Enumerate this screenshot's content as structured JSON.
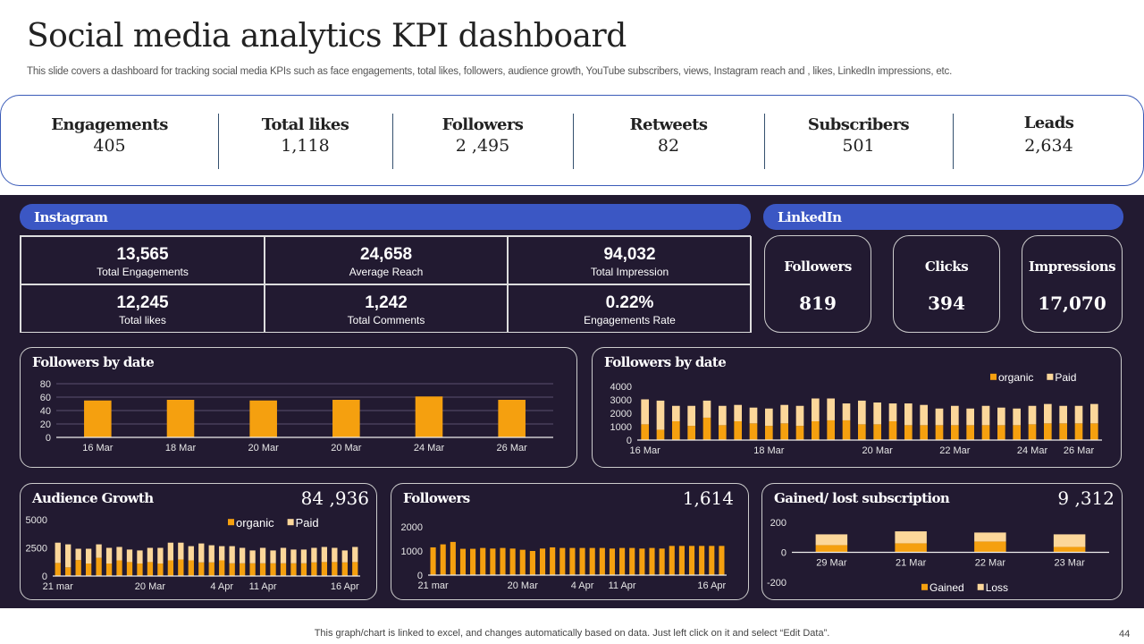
{
  "title": "Social media analytics KPI dashboard",
  "subtitle": "This slide covers a dashboard for tracking social media KPIs such as face engagements, total likes, followers, audience growth, YouTube subscribers, views, Instagram reach and , likes, LinkedIn impressions, etc.",
  "kpis": [
    {
      "label": "Engagements",
      "value": "405"
    },
    {
      "label": "Total likes",
      "value": "1,118"
    },
    {
      "label": "Followers",
      "value": "2 ,495"
    },
    {
      "label": "Retweets",
      "value": "82"
    },
    {
      "label": "Subscribers",
      "value": "501"
    },
    {
      "label": "Leads",
      "value": "2,634"
    }
  ],
  "instagram": {
    "header": "Instagram",
    "metrics": [
      {
        "value": "13,565",
        "label": "Total Engagements"
      },
      {
        "value": "24,658",
        "label": "Average Reach"
      },
      {
        "value": "94,032",
        "label": "Total Impression"
      },
      {
        "value": "12,245",
        "label": "Total likes"
      },
      {
        "value": "1,242",
        "label": "Total Comments"
      },
      {
        "value": "0.22%",
        "label": "Engagements Rate"
      }
    ]
  },
  "linkedin": {
    "header": "LinkedIn",
    "metrics": [
      {
        "label": "Followers",
        "value": "819"
      },
      {
        "label": "Clicks",
        "value": "394"
      },
      {
        "label": "Impressions",
        "value": "17,070"
      }
    ]
  },
  "colors": {
    "organic": "#f5a00f",
    "paid": "#fcd79a",
    "dark_bg": "#221a31",
    "header_blue": "#3b57c4",
    "kpi_border": "#3a5bb8"
  },
  "chart_data": [
    {
      "type": "bar",
      "title": "Followers by date",
      "grid": true,
      "ylim": [
        0,
        80
      ],
      "yticks": [
        0,
        20,
        40,
        60,
        80
      ],
      "categories": [
        "16 Mar",
        "18 Mar",
        "20 Mar",
        "20 Mar",
        "24 Mar",
        "26 Mar"
      ],
      "series": [
        {
          "values": [
            55,
            56,
            55,
            56,
            61,
            56
          ]
        }
      ]
    },
    {
      "type": "bar",
      "stacked": true,
      "title": "Followers by date",
      "grid": false,
      "ylim": [
        0,
        4000
      ],
      "yticks": [
        0,
        1000,
        2000,
        3000,
        4000
      ],
      "legend": "top-right",
      "categories": [
        "16 Mar",
        "",
        "",
        "",
        "",
        "",
        "",
        "",
        "18 Mar",
        "",
        "",
        "",
        "",
        "",
        "",
        "20 Mar",
        "",
        "",
        "",
        "",
        "22 Mar",
        "",
        "",
        "",
        "",
        "24 Mar",
        "",
        "",
        "26 Mar",
        ""
      ],
      "series": [
        {
          "name": "organic",
          "values": [
            1175,
            770,
            1400,
            1060,
            1670,
            1110,
            1400,
            1245,
            1060,
            1245,
            1060,
            1400,
            1470,
            1470,
            1175,
            1175,
            1400,
            1110,
            1110,
            1110,
            1110,
            1110,
            1110,
            1110,
            1110,
            1175,
            1245,
            1245,
            1245,
            1245
          ]
        },
        {
          "name": "Paid",
          "values": [
            1860,
            2170,
            1150,
            1490,
            1270,
            1440,
            1220,
            1175,
            1290,
            1375,
            1490,
            1700,
            1630,
            1260,
            1765,
            1625,
            1330,
            1620,
            1510,
            1240,
            1440,
            1240,
            1440,
            1310,
            1240,
            1375,
            1445,
            1305,
            1305,
            1445
          ]
        }
      ]
    },
    {
      "type": "bar",
      "stacked": true,
      "title": "Audience Growth",
      "headline": "84 ,936",
      "grid": false,
      "ylim": [
        0,
        5000
      ],
      "yticks": [
        0,
        2500,
        5000
      ],
      "legend": "top-right",
      "categories": [
        "21 mar",
        "",
        "",
        "",
        "",
        "",
        "",
        "",
        "",
        "20 Mar",
        "",
        "",
        "",
        "",
        "",
        "",
        "4 Apr",
        "",
        "",
        "",
        "11 Apr",
        "",
        "",
        "",
        "",
        "",
        "",
        "",
        "16 Apr",
        ""
      ],
      "series": [
        {
          "name": "organic",
          "values": [
            1160,
            770,
            1420,
            1110,
            1620,
            1110,
            1390,
            1240,
            1110,
            1240,
            1110,
            1390,
            1470,
            1390,
            1210,
            1210,
            1390,
            1130,
            1130,
            1130,
            1130,
            1130,
            1130,
            1130,
            1130,
            1210,
            1240,
            1240,
            1210,
            1240
          ]
        },
        {
          "name": "Paid",
          "values": [
            1800,
            2040,
            1000,
            1310,
            1190,
            1390,
            1190,
            1110,
            1160,
            1260,
            1390,
            1570,
            1490,
            1260,
            1680,
            1520,
            1260,
            1520,
            1370,
            1140,
            1370,
            1140,
            1370,
            1220,
            1220,
            1290,
            1340,
            1260,
            1060,
            1340
          ]
        }
      ]
    },
    {
      "type": "bar",
      "title": "Followers",
      "headline": "1,614",
      "grid": false,
      "ylim": [
        0,
        2000
      ],
      "yticks": [
        0,
        1000,
        2000
      ],
      "categories": [
        "21 mar",
        "",
        "",
        "",
        "",
        "",
        "",
        "",
        "",
        "20 Mar",
        "",
        "",
        "",
        "",
        "",
        "4 Apr",
        "",
        "",
        "",
        "11 Apr",
        "",
        "",
        "",
        "",
        "",
        "",
        "",
        "",
        "16 Apr",
        ""
      ],
      "series": [
        {
          "values": [
            1150,
            1275,
            1375,
            1090,
            1090,
            1125,
            1100,
            1125,
            1100,
            1050,
            1000,
            1100,
            1150,
            1125,
            1125,
            1125,
            1125,
            1125,
            1100,
            1125,
            1125,
            1100,
            1125,
            1100,
            1210,
            1210,
            1210,
            1210,
            1210,
            1210
          ]
        }
      ]
    },
    {
      "type": "bar",
      "stacked": true,
      "title": "Gained/ lost subscription",
      "headline": "9 ,312",
      "grid": false,
      "ylim": [
        -200,
        200
      ],
      "yticks": [
        -200,
        0,
        200
      ],
      "legend": "bottom",
      "categories": [
        "29 Mar",
        "21 Mar",
        "22 Mar",
        "23 Mar"
      ],
      "series": [
        {
          "name": "Gained",
          "values": [
            48,
            60,
            72,
            36
          ]
        },
        {
          "name": "Loss",
          "values": [
            72,
            80,
            60,
            84
          ]
        }
      ]
    }
  ],
  "footer": "This graph/chart is linked to excel,  and changes automatically based on data. Just left click on it and select “Edit Data”.",
  "page_number": "44"
}
